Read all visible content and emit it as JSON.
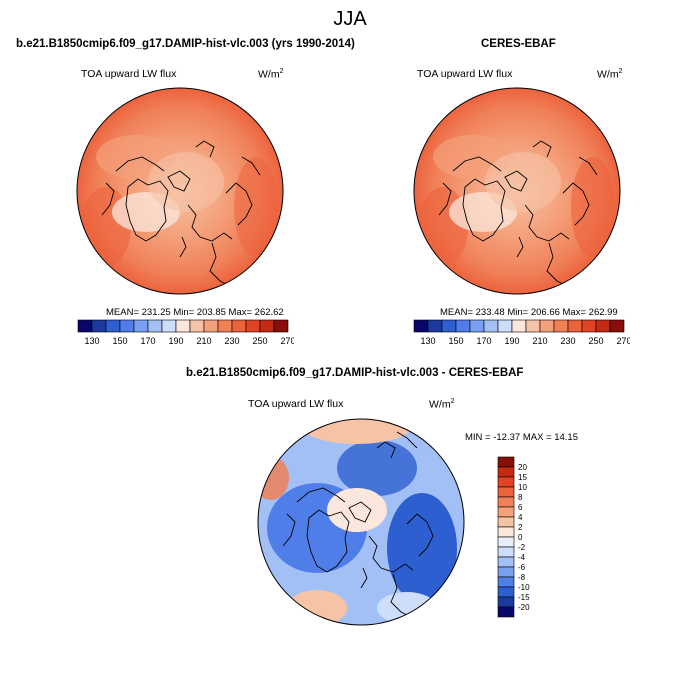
{
  "title": "JJA",
  "panels": [
    {
      "title": "b.e21.B1850cmip6.f09_g17.DAMIP-hist-vlc.003 (yrs 1990-2014)",
      "variable": "TOA upward LW flux",
      "unit_base": "W/m",
      "unit_exp": "2",
      "stats": "MEAN= 231.25  Min= 203.85  Max= 262.62"
    },
    {
      "title": "CERES-EBAF",
      "variable": "TOA upward LW flux",
      "unit_base": "W/m",
      "unit_exp": "2",
      "stats": "MEAN= 233.48  Min= 206.66  Max= 262.99"
    },
    {
      "title": "b.e21.B1850cmip6.f09_g17.DAMIP-hist-vlc.003 - CERES-EBAF",
      "variable": "TOA upward LW flux",
      "unit_base": "W/m",
      "unit_exp": "2",
      "stats": "MIN = -12.37 MAX =  14.15"
    }
  ],
  "abs_colorbar": {
    "tick_labels": [
      "130",
      "150",
      "170",
      "190",
      "210",
      "230",
      "250",
      "270"
    ],
    "colors": [
      "#08086b",
      "#1a3aa0",
      "#2e5fd0",
      "#4f7ee8",
      "#7aa0f0",
      "#a3c0f6",
      "#cdddfa",
      "#fbe7dc",
      "#f7c3a6",
      "#f4a07a",
      "#f08058",
      "#ec623c",
      "#e14422",
      "#c42a14",
      "#8a0e08"
    ]
  },
  "diff_colorbar": {
    "tick_labels": [
      "20",
      "15",
      "10",
      "8",
      "6",
      "4",
      "2",
      "0",
      "-2",
      "-4",
      "-6",
      "-8",
      "-10",
      "-15",
      "-20"
    ],
    "colors": [
      "#8a0e08",
      "#c42a14",
      "#e14422",
      "#ec623c",
      "#f08058",
      "#f4a07a",
      "#f7c3a6",
      "#fbe7dc",
      "#e8eef8",
      "#cdddfa",
      "#a3c0f6",
      "#7aa0f0",
      "#4f7ee8",
      "#2e5fd0",
      "#1a3aa0",
      "#08086b"
    ]
  }
}
